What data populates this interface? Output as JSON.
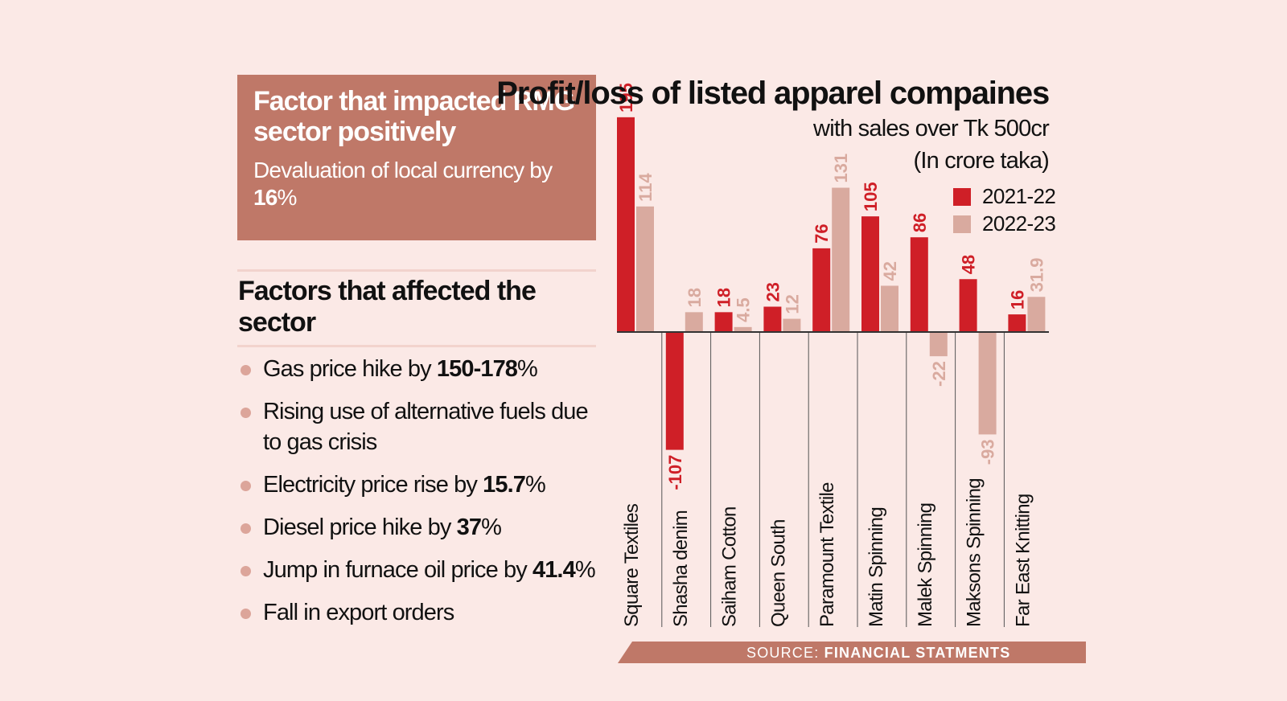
{
  "colors": {
    "background": "#fbe9e6",
    "panel": "#bf7868",
    "series_2021_22": "#cf1f27",
    "series_2022_23": "#d9aa9f",
    "bullet": "#dca59a"
  },
  "positive_panel": {
    "title": "Factor that impacted RMG sector positively",
    "text_prefix": "Devaluation of local currency by ",
    "text_bold": "16",
    "text_suffix": "%"
  },
  "negative_panel": {
    "title": "Factors that affected the sector",
    "items": [
      {
        "prefix": "Gas price hike by ",
        "bold": "150-178",
        "suffix": "%"
      },
      {
        "prefix": "Rising use of alternative fuels due to gas crisis",
        "bold": "",
        "suffix": ""
      },
      {
        "prefix": "Electricity price rise by ",
        "bold": "15.7",
        "suffix": "%"
      },
      {
        "prefix": "Diesel price hike by ",
        "bold": "37",
        "suffix": "%"
      },
      {
        "prefix": "Jump in furnace oil price by ",
        "bold": "41.4",
        "suffix": "%"
      },
      {
        "prefix": "Fall in export orders",
        "bold": "",
        "suffix": ""
      }
    ]
  },
  "chart_data": {
    "type": "bar",
    "title": "Profit/loss of listed apparel compaines",
    "subtitle": "with sales over Tk 500cr",
    "unit": "(In crore taka)",
    "categories": [
      "Square Textiles",
      "Shasha denim",
      "Saiham Cotton",
      "Queen South",
      "Paramount Textile",
      "Matin Spinning",
      "Malek Spinning",
      "Maksons Spinning",
      "Far East Knitting"
    ],
    "series": [
      {
        "name": "2021-22",
        "values": [
          195,
          -107,
          18,
          23,
          76,
          105,
          86,
          48,
          16
        ],
        "labels": [
          "195",
          "-107",
          "18",
          "23",
          "76",
          "105",
          "86",
          "48",
          "16"
        ]
      },
      {
        "name": "2022-23",
        "values": [
          114,
          18,
          4.5,
          12,
          131,
          42,
          -22,
          -93,
          31.9
        ],
        "labels": [
          "114",
          "18",
          "4.5",
          "12",
          "131",
          "42",
          "-22",
          "-93",
          "31.9"
        ]
      }
    ],
    "legend": "top-right",
    "grid": false,
    "source_prefix": "SOURCE: ",
    "source_bold": "FINANCIAL STATMENTS"
  }
}
